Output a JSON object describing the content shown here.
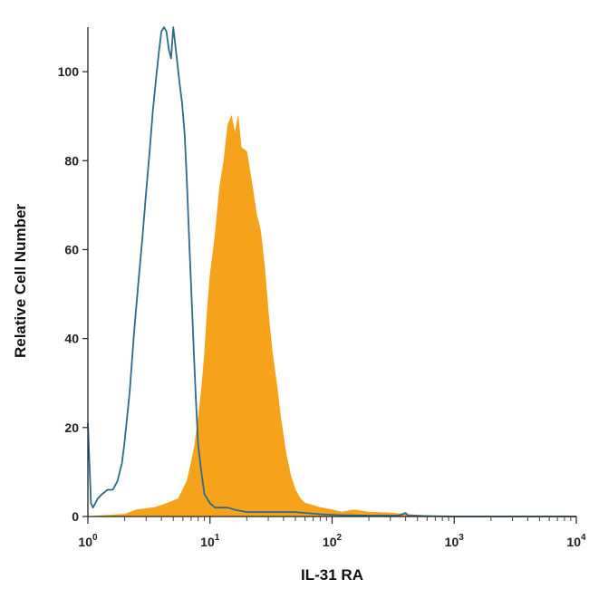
{
  "chart_data": {
    "type": "area",
    "title": "",
    "xlabel": "IL-31 RA",
    "ylabel": "Relative Cell Number",
    "x_scale": "log",
    "xlim": [
      1,
      10000
    ],
    "ylim": [
      0,
      110
    ],
    "x_ticks": [
      {
        "value": 1,
        "base": "10",
        "exp": "0"
      },
      {
        "value": 10,
        "base": "10",
        "exp": "1"
      },
      {
        "value": 100,
        "base": "10",
        "exp": "2"
      },
      {
        "value": 1000,
        "base": "10",
        "exp": "3"
      },
      {
        "value": 10000,
        "base": "10",
        "exp": "4"
      }
    ],
    "y_ticks": [
      0,
      20,
      40,
      60,
      80,
      100
    ],
    "grid": false,
    "legend": "none",
    "series": [
      {
        "style": "filled",
        "color": "#f7a21b",
        "points": [
          [
            1.0,
            0
          ],
          [
            2.0,
            0.5
          ],
          [
            2.5,
            1.5
          ],
          [
            3.5,
            2
          ],
          [
            4.5,
            3
          ],
          [
            5.5,
            4
          ],
          [
            6.5,
            8
          ],
          [
            7.0,
            12
          ],
          [
            7.5,
            16
          ],
          [
            8.0,
            22
          ],
          [
            8.5,
            28
          ],
          [
            9.0,
            36
          ],
          [
            9.5,
            46
          ],
          [
            10.0,
            54
          ],
          [
            11.0,
            63
          ],
          [
            12.0,
            74
          ],
          [
            13.0,
            80
          ],
          [
            14.0,
            88
          ],
          [
            15.0,
            90
          ],
          [
            16.0,
            86
          ],
          [
            17.0,
            90
          ],
          [
            18.0,
            83
          ],
          [
            20.0,
            82
          ],
          [
            22.0,
            75
          ],
          [
            24.0,
            68
          ],
          [
            26.0,
            64
          ],
          [
            28.0,
            56
          ],
          [
            30.0,
            46
          ],
          [
            32.0,
            38
          ],
          [
            35.0,
            30
          ],
          [
            38.0,
            22
          ],
          [
            42.0,
            14
          ],
          [
            46.0,
            9
          ],
          [
            50.0,
            6
          ],
          [
            55.0,
            4
          ],
          [
            60.0,
            3
          ],
          [
            70.0,
            2.5
          ],
          [
            80.0,
            2
          ],
          [
            100.0,
            1.5
          ],
          [
            120.0,
            1
          ],
          [
            150.0,
            1.5
          ],
          [
            200.0,
            1
          ],
          [
            300.0,
            0.8
          ],
          [
            400.0,
            0.5
          ],
          [
            500.0,
            0.3
          ],
          [
            700.0,
            0.1
          ],
          [
            1000.0,
            0
          ]
        ]
      },
      {
        "style": "outline",
        "color": "#2e6a8e",
        "points": [
          [
            1.0,
            21
          ],
          [
            1.03,
            12
          ],
          [
            1.06,
            3
          ],
          [
            1.1,
            2
          ],
          [
            1.15,
            3
          ],
          [
            1.2,
            4
          ],
          [
            1.3,
            5
          ],
          [
            1.45,
            6
          ],
          [
            1.6,
            6
          ],
          [
            1.75,
            8
          ],
          [
            1.9,
            12
          ],
          [
            2.0,
            17
          ],
          [
            2.2,
            28
          ],
          [
            2.4,
            42
          ],
          [
            2.6,
            53
          ],
          [
            2.8,
            63
          ],
          [
            3.0,
            73
          ],
          [
            3.2,
            82
          ],
          [
            3.4,
            91
          ],
          [
            3.6,
            98
          ],
          [
            3.8,
            104
          ],
          [
            4.0,
            109
          ],
          [
            4.2,
            110
          ],
          [
            4.4,
            109
          ],
          [
            4.6,
            105
          ],
          [
            4.8,
            103
          ],
          [
            5.0,
            110
          ],
          [
            5.3,
            104
          ],
          [
            5.6,
            98
          ],
          [
            5.9,
            93
          ],
          [
            6.2,
            86
          ],
          [
            6.5,
            74
          ],
          [
            6.8,
            60
          ],
          [
            7.1,
            48
          ],
          [
            7.4,
            36
          ],
          [
            7.7,
            25
          ],
          [
            8.0,
            16
          ],
          [
            8.5,
            10
          ],
          [
            9.0,
            5
          ],
          [
            10.0,
            3
          ],
          [
            11.0,
            2
          ],
          [
            12.0,
            2
          ],
          [
            14.0,
            2
          ],
          [
            16.0,
            1.5
          ],
          [
            20.0,
            1
          ],
          [
            30.0,
            1
          ],
          [
            50.0,
            1
          ],
          [
            80.0,
            0.5
          ],
          [
            120.0,
            0.3
          ],
          [
            200.0,
            0.2
          ],
          [
            350.0,
            0.2
          ],
          [
            400.0,
            0.8
          ],
          [
            420.0,
            0.2
          ],
          [
            600.0,
            0.1
          ],
          [
            1000.0,
            0
          ],
          [
            10000.0,
            0
          ]
        ]
      }
    ]
  }
}
